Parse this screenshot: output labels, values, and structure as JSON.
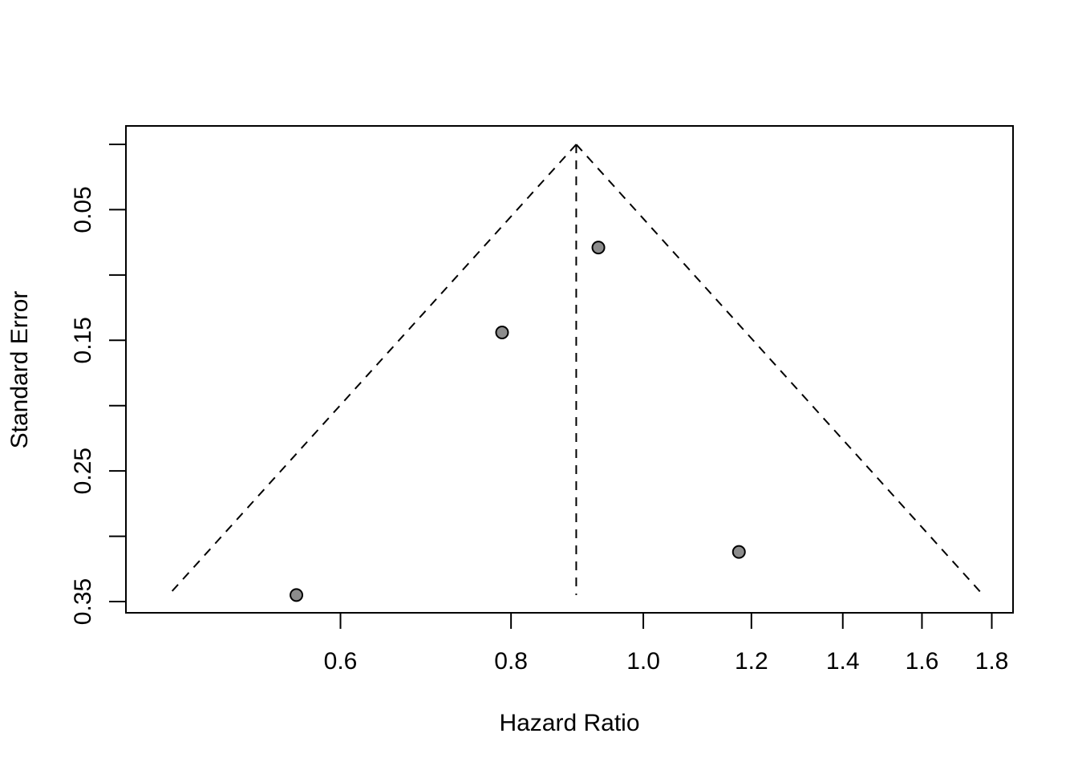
{
  "chart_data": {
    "type": "scatter",
    "subtype": "funnel-plot",
    "title": "",
    "xlabel": "Hazard Ratio",
    "ylabel": "Standard Error",
    "x_scale": "log",
    "x_ticks": [
      0.6,
      0.8,
      1.0,
      1.2,
      1.4,
      1.6,
      1.8
    ],
    "x_tick_labels": [
      "0.6",
      "0.8",
      "1.0",
      "1.2",
      "1.4",
      "1.6",
      "1.8"
    ],
    "xlim": [
      0.41,
      1.88
    ],
    "y_reversed": true,
    "y_ticks": [
      0.0,
      0.05,
      0.1,
      0.15,
      0.2,
      0.25,
      0.3,
      0.35
    ],
    "y_tick_labels": [
      "",
      "0.05",
      "",
      "0.15",
      "",
      "0.25",
      "",
      "0.35"
    ],
    "ylim": [
      0.0,
      0.35
    ],
    "summary_estimate": 0.893,
    "funnel_limits": {
      "lower_at_max_se": 0.449,
      "upper_at_max_se": 1.774
    },
    "points": [
      {
        "x": 0.927,
        "y": 0.079
      },
      {
        "x": 0.788,
        "y": 0.144
      },
      {
        "x": 1.175,
        "y": 0.312
      },
      {
        "x": 0.557,
        "y": 0.345
      }
    ],
    "colors": {
      "point_fill": "#8c8c8c",
      "line": "#000000",
      "background": "#ffffff"
    },
    "grid": false,
    "legend": "none"
  }
}
